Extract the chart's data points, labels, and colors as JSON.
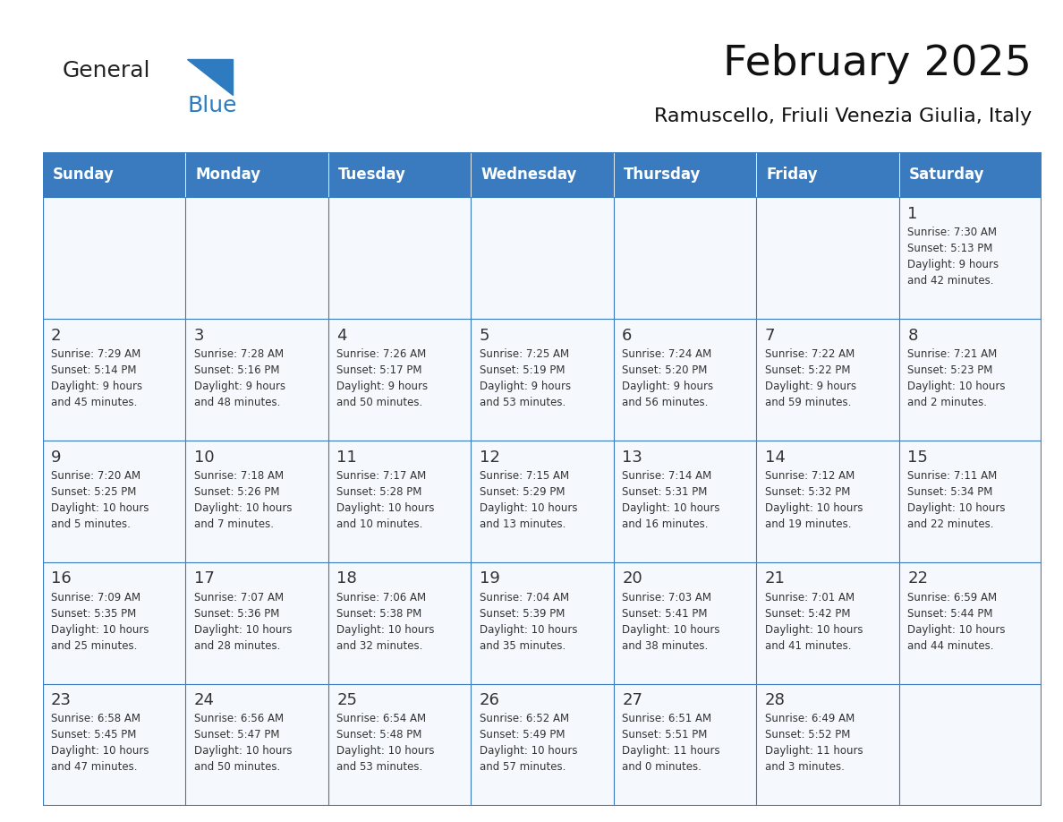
{
  "title": "February 2025",
  "subtitle": "Ramuscello, Friuli Venezia Giulia, Italy",
  "header_bg": "#3a7abf",
  "header_text_color": "#ffffff",
  "cell_bg_light": "#f0f4fa",
  "cell_bg_white": "#ffffff",
  "border_color": "#3a7abf",
  "text_color": "#333333",
  "days_of_week": [
    "Sunday",
    "Monday",
    "Tuesday",
    "Wednesday",
    "Thursday",
    "Friday",
    "Saturday"
  ],
  "weeks": [
    [
      {
        "day": null,
        "info": null
      },
      {
        "day": null,
        "info": null
      },
      {
        "day": null,
        "info": null
      },
      {
        "day": null,
        "info": null
      },
      {
        "day": null,
        "info": null
      },
      {
        "day": null,
        "info": null
      },
      {
        "day": 1,
        "info": "Sunrise: 7:30 AM\nSunset: 5:13 PM\nDaylight: 9 hours\nand 42 minutes."
      }
    ],
    [
      {
        "day": 2,
        "info": "Sunrise: 7:29 AM\nSunset: 5:14 PM\nDaylight: 9 hours\nand 45 minutes."
      },
      {
        "day": 3,
        "info": "Sunrise: 7:28 AM\nSunset: 5:16 PM\nDaylight: 9 hours\nand 48 minutes."
      },
      {
        "day": 4,
        "info": "Sunrise: 7:26 AM\nSunset: 5:17 PM\nDaylight: 9 hours\nand 50 minutes."
      },
      {
        "day": 5,
        "info": "Sunrise: 7:25 AM\nSunset: 5:19 PM\nDaylight: 9 hours\nand 53 minutes."
      },
      {
        "day": 6,
        "info": "Sunrise: 7:24 AM\nSunset: 5:20 PM\nDaylight: 9 hours\nand 56 minutes."
      },
      {
        "day": 7,
        "info": "Sunrise: 7:22 AM\nSunset: 5:22 PM\nDaylight: 9 hours\nand 59 minutes."
      },
      {
        "day": 8,
        "info": "Sunrise: 7:21 AM\nSunset: 5:23 PM\nDaylight: 10 hours\nand 2 minutes."
      }
    ],
    [
      {
        "day": 9,
        "info": "Sunrise: 7:20 AM\nSunset: 5:25 PM\nDaylight: 10 hours\nand 5 minutes."
      },
      {
        "day": 10,
        "info": "Sunrise: 7:18 AM\nSunset: 5:26 PM\nDaylight: 10 hours\nand 7 minutes."
      },
      {
        "day": 11,
        "info": "Sunrise: 7:17 AM\nSunset: 5:28 PM\nDaylight: 10 hours\nand 10 minutes."
      },
      {
        "day": 12,
        "info": "Sunrise: 7:15 AM\nSunset: 5:29 PM\nDaylight: 10 hours\nand 13 minutes."
      },
      {
        "day": 13,
        "info": "Sunrise: 7:14 AM\nSunset: 5:31 PM\nDaylight: 10 hours\nand 16 minutes."
      },
      {
        "day": 14,
        "info": "Sunrise: 7:12 AM\nSunset: 5:32 PM\nDaylight: 10 hours\nand 19 minutes."
      },
      {
        "day": 15,
        "info": "Sunrise: 7:11 AM\nSunset: 5:34 PM\nDaylight: 10 hours\nand 22 minutes."
      }
    ],
    [
      {
        "day": 16,
        "info": "Sunrise: 7:09 AM\nSunset: 5:35 PM\nDaylight: 10 hours\nand 25 minutes."
      },
      {
        "day": 17,
        "info": "Sunrise: 7:07 AM\nSunset: 5:36 PM\nDaylight: 10 hours\nand 28 minutes."
      },
      {
        "day": 18,
        "info": "Sunrise: 7:06 AM\nSunset: 5:38 PM\nDaylight: 10 hours\nand 32 minutes."
      },
      {
        "day": 19,
        "info": "Sunrise: 7:04 AM\nSunset: 5:39 PM\nDaylight: 10 hours\nand 35 minutes."
      },
      {
        "day": 20,
        "info": "Sunrise: 7:03 AM\nSunset: 5:41 PM\nDaylight: 10 hours\nand 38 minutes."
      },
      {
        "day": 21,
        "info": "Sunrise: 7:01 AM\nSunset: 5:42 PM\nDaylight: 10 hours\nand 41 minutes."
      },
      {
        "day": 22,
        "info": "Sunrise: 6:59 AM\nSunset: 5:44 PM\nDaylight: 10 hours\nand 44 minutes."
      }
    ],
    [
      {
        "day": 23,
        "info": "Sunrise: 6:58 AM\nSunset: 5:45 PM\nDaylight: 10 hours\nand 47 minutes."
      },
      {
        "day": 24,
        "info": "Sunrise: 6:56 AM\nSunset: 5:47 PM\nDaylight: 10 hours\nand 50 minutes."
      },
      {
        "day": 25,
        "info": "Sunrise: 6:54 AM\nSunset: 5:48 PM\nDaylight: 10 hours\nand 53 minutes."
      },
      {
        "day": 26,
        "info": "Sunrise: 6:52 AM\nSunset: 5:49 PM\nDaylight: 10 hours\nand 57 minutes."
      },
      {
        "day": 27,
        "info": "Sunrise: 6:51 AM\nSunset: 5:51 PM\nDaylight: 11 hours\nand 0 minutes."
      },
      {
        "day": 28,
        "info": "Sunrise: 6:49 AM\nSunset: 5:52 PM\nDaylight: 11 hours\nand 3 minutes."
      },
      {
        "day": null,
        "info": null
      }
    ]
  ],
  "logo_general_color": "#222222",
  "logo_blue_color": "#2e7bbf",
  "logo_triangle_color": "#2e7bbf"
}
